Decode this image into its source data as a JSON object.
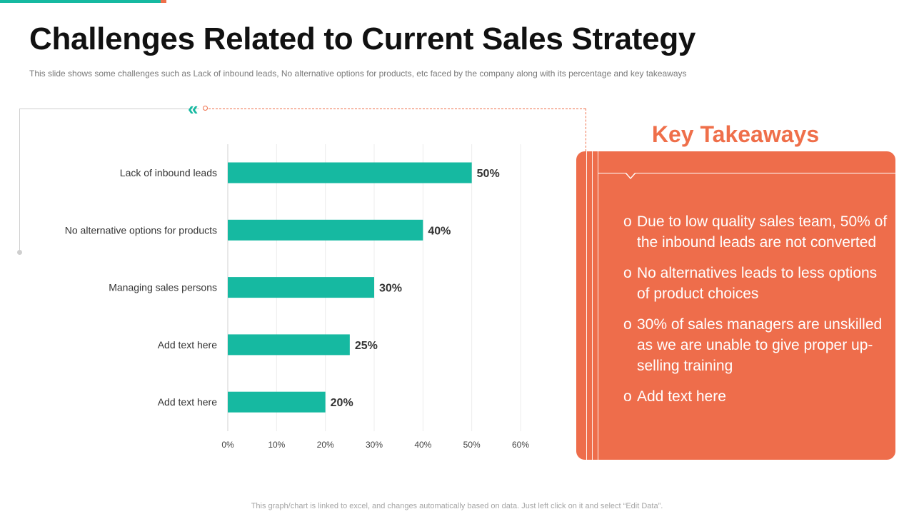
{
  "title": "Challenges Related to Current Sales Strategy",
  "subtitle": "This slide shows some challenges such as Lack of inbound leads, No alternative options for products, etc faced by the company along with its percentage and key takeaways",
  "colors": {
    "teal": "#16b9a1",
    "orange": "#ef6f4a",
    "panel": "#ee6d4b"
  },
  "chart_data": {
    "type": "bar",
    "orientation": "horizontal",
    "categories": [
      "Lack of inbound leads",
      "No alternative options for products",
      "Managing sales persons",
      "Add text here",
      "Add text here"
    ],
    "values": [
      50,
      40,
      30,
      25,
      20
    ],
    "value_labels": [
      "50%",
      "40%",
      "30%",
      "25%",
      "20%"
    ],
    "xlim": [
      0,
      60
    ],
    "ticks": [
      0,
      10,
      20,
      30,
      40,
      50,
      60
    ],
    "tick_labels": [
      "0%",
      "10%",
      "20%",
      "30%",
      "40%",
      "50%",
      "60%"
    ],
    "grid": true,
    "title": "",
    "xlabel": "",
    "ylabel": ""
  },
  "key_takeaways": {
    "heading": "Key Takeaways",
    "items": [
      "Due to low quality sales team, 50% of the inbound leads are not converted",
      "No alternatives leads to less options of product choices",
      "30% of sales managers are unskilled as we are unable to give proper up-selling training",
      "Add text here"
    ],
    "bullet": "o"
  },
  "footnote": "This graph/chart is linked to excel, and changes automatically based on data. Just left click on it and select “Edit Data”."
}
